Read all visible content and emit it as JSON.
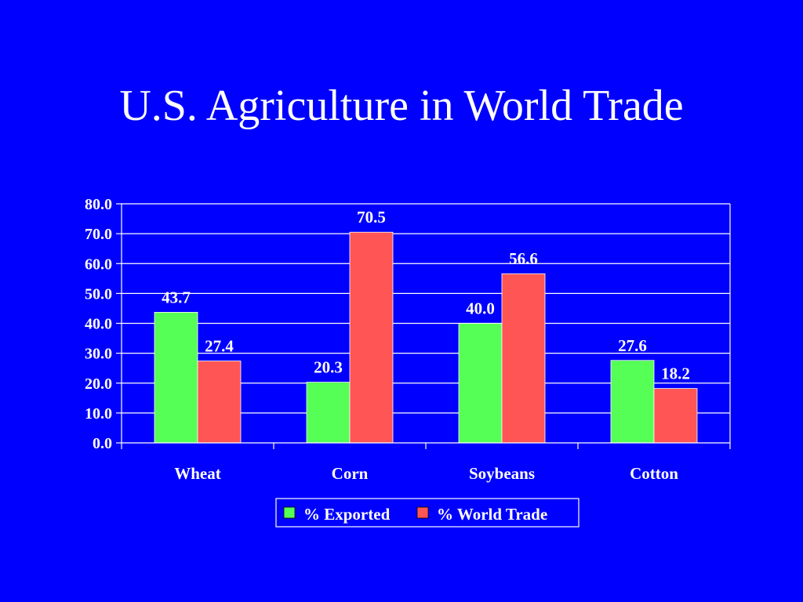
{
  "slide": {
    "title": "U.S. Agriculture in World Trade"
  },
  "colors": {
    "background": "#0000ff",
    "series_exported": "#55ff55",
    "series_world_trade": "#ff5555",
    "text": "#ffffff",
    "axis": "#ffffff"
  },
  "chart_data": {
    "type": "bar",
    "title": "",
    "xlabel": "",
    "ylabel": "",
    "categories": [
      "Wheat",
      "Corn",
      "Soybeans",
      "Cotton"
    ],
    "series": [
      {
        "name": "% Exported",
        "values": [
          43.7,
          20.3,
          40.0,
          27.6
        ]
      },
      {
        "name": "% World Trade",
        "values": [
          27.4,
          70.5,
          56.6,
          18.2
        ]
      }
    ],
    "value_labels": [
      [
        "43.7",
        "20.3",
        "40.0",
        "27.6"
      ],
      [
        "27.4",
        "70.5",
        "56.6",
        "18.2"
      ]
    ],
    "ylim": [
      0,
      80
    ],
    "y_ticks": [
      "0.0",
      "10.0",
      "20.0",
      "30.0",
      "40.0",
      "50.0",
      "60.0",
      "70.0",
      "80.0"
    ],
    "grid": true,
    "legend_position": "bottom"
  }
}
